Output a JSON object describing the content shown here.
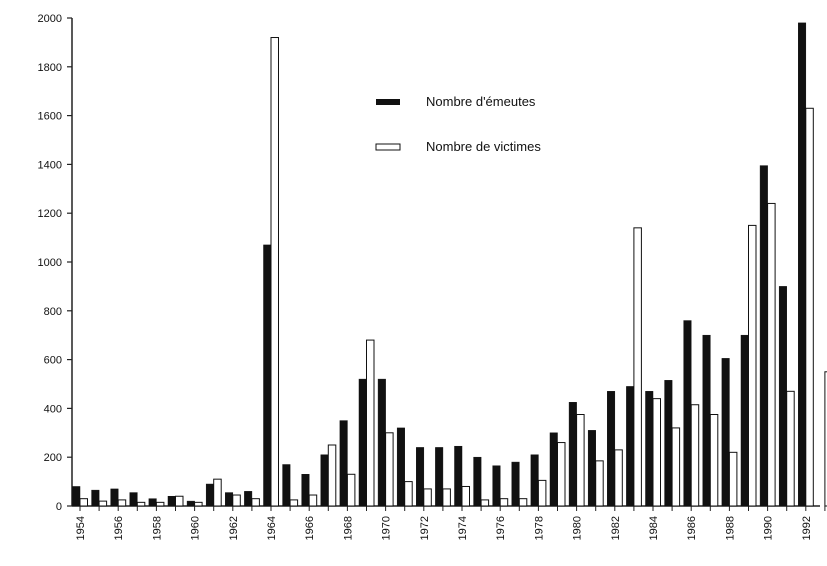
{
  "chart_data": {
    "type": "bar",
    "title": "",
    "xlabel": "",
    "ylabel": "",
    "ylim": [
      0,
      2000
    ],
    "yticks": [
      0,
      200,
      400,
      600,
      800,
      1000,
      1200,
      1400,
      1600,
      1800,
      2000
    ],
    "x": [
      1954,
      1955,
      1956,
      1957,
      1958,
      1959,
      1960,
      1961,
      1962,
      1963,
      1964,
      1965,
      1966,
      1967,
      1968,
      1969,
      1970,
      1971,
      1972,
      1973,
      1974,
      1975,
      1976,
      1977,
      1978,
      1979,
      1980,
      1981,
      1982,
      1983,
      1984,
      1985,
      1986,
      1987,
      1988,
      1989,
      1990,
      1991,
      1992,
      1993
    ],
    "x_tick_labels": [
      "1954",
      "1956",
      "1958",
      "1960",
      "1962",
      "1964",
      "1966",
      "1968",
      "1970",
      "1972",
      "1974",
      "1976",
      "1978",
      "1980",
      "1982",
      "1984",
      "1986",
      "1988",
      "1990",
      "1992"
    ],
    "series": [
      {
        "name": "Nombre d'émeutes",
        "color": "#111111",
        "values": [
          80,
          65,
          70,
          55,
          30,
          40,
          20,
          90,
          55,
          60,
          1070,
          170,
          130,
          210,
          350,
          520,
          520,
          320,
          240,
          240,
          245,
          200,
          165,
          180,
          210,
          300,
          425,
          310,
          470,
          490,
          470,
          515,
          760,
          700,
          605,
          700,
          1395,
          900,
          1980,
          0
        ]
      },
      {
        "name": "Nombre de victimes",
        "color": "#ffffff",
        "values": [
          30,
          20,
          25,
          15,
          15,
          40,
          15,
          110,
          45,
          30,
          1920,
          25,
          45,
          250,
          130,
          680,
          300,
          100,
          70,
          70,
          80,
          25,
          30,
          30,
          105,
          260,
          375,
          185,
          230,
          1140,
          440,
          320,
          415,
          375,
          220,
          1150,
          1240,
          470,
          1630,
          550
        ]
      }
    ],
    "legend": {
      "position": "top-center",
      "entries": [
        "Nombre d'émeutes",
        "Nombre de victimes"
      ]
    },
    "grid": false
  }
}
